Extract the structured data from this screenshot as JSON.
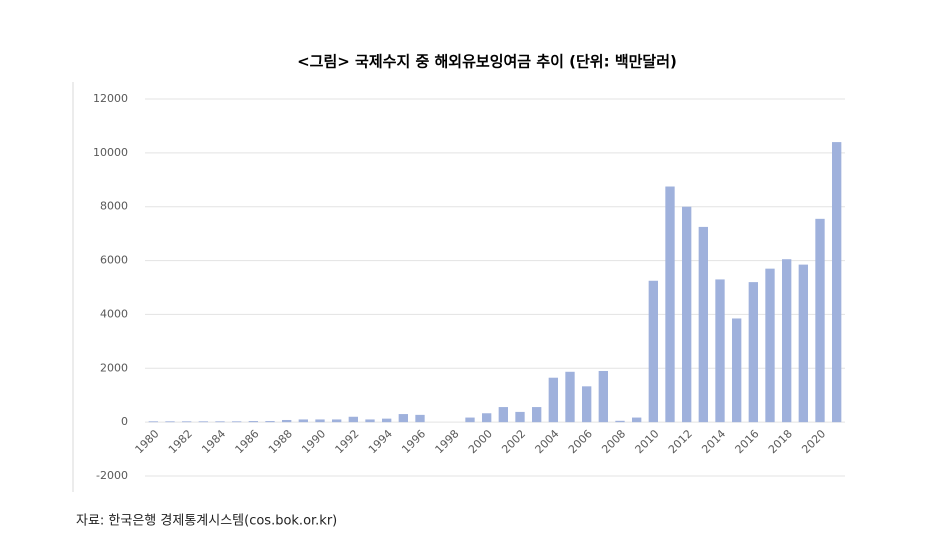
{
  "chart_data": {
    "type": "bar",
    "title": "<그림> 국제수지 중 해외유보잉여금 추이 (단위: 백만달러)",
    "source": "자료: 한국은행 경제통계시스템(cos.bok.or.kr)",
    "categories": [
      "1980",
      null,
      "1982",
      null,
      "1984",
      null,
      "1986",
      null,
      "1988",
      null,
      "1990",
      null,
      "1992",
      null,
      "1994",
      null,
      "1996",
      null,
      "1998",
      null,
      "2000",
      null,
      "2002",
      null,
      "2004",
      null,
      "2006",
      null,
      "2008",
      null,
      "2010",
      null,
      "2012",
      null,
      "2014",
      null,
      "2016",
      null,
      "2018",
      null,
      "2020",
      null
    ],
    "values": [
      30,
      30,
      30,
      30,
      30,
      30,
      40,
      40,
      80,
      100,
      100,
      100,
      200,
      100,
      130,
      300,
      270,
      0,
      0,
      170,
      330,
      560,
      380,
      560,
      1650,
      1870,
      1330,
      1900,
      50,
      170,
      5250,
      8750,
      8000,
      7250,
      5300,
      3850,
      5200,
      5700,
      6050,
      5850,
      7550,
      10400
    ],
    "color": "#9fb1dc",
    "ylim": [
      -2000,
      12000
    ],
    "yticks": [
      -2000,
      0,
      2000,
      4000,
      6000,
      8000,
      10000,
      12000
    ],
    "grid": true
  }
}
